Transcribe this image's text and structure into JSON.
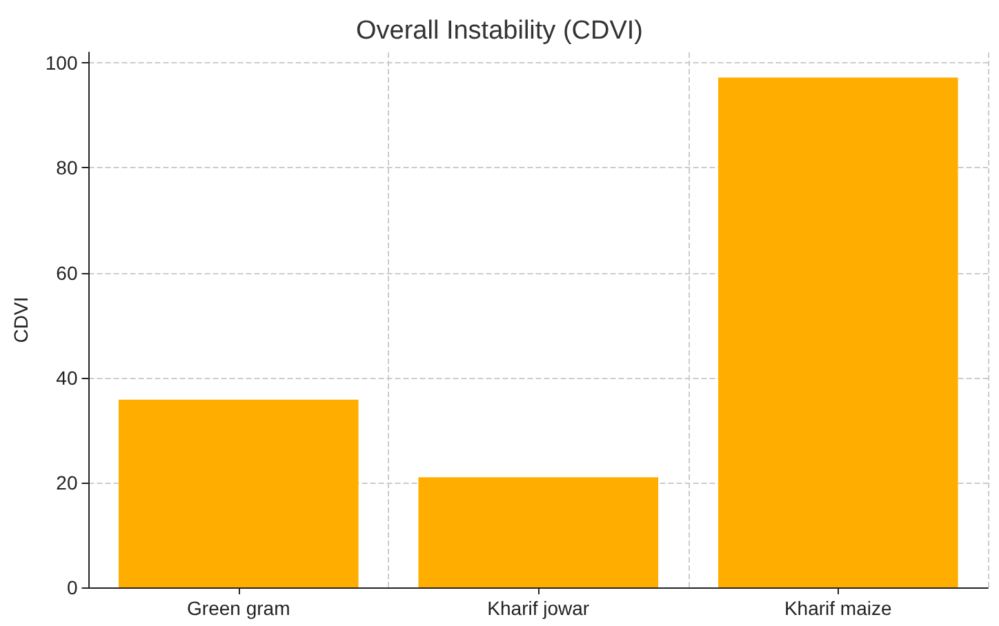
{
  "chart_data": {
    "type": "bar",
    "title": "Overall Instability (CDVI)",
    "ylabel": "CDVI",
    "categories": [
      "Green gram",
      "Kharif jowar",
      "Kharif maize"
    ],
    "values": [
      35.8,
      21,
      97.2
    ],
    "color": "#ffae00",
    "ylim": [
      0,
      102
    ],
    "yticks": [
      0,
      20,
      40,
      60,
      80,
      100
    ],
    "grid": true
  }
}
